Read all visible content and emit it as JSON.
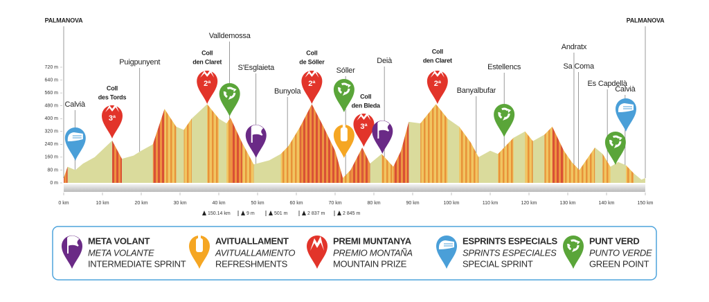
{
  "chart_data": {
    "type": "area",
    "color": "#dadb9c",
    "x": [
      0,
      1,
      3,
      5,
      8,
      12.5,
      15,
      18,
      20,
      23,
      26,
      29,
      31,
      33,
      37,
      40,
      42,
      43,
      46,
      49,
      53,
      56,
      58,
      61,
      64,
      67,
      70,
      72,
      74,
      77,
      79,
      80,
      82,
      85,
      87,
      89,
      92,
      96,
      99,
      102,
      105,
      107,
      110,
      112,
      116,
      119,
      121,
      124,
      126,
      129,
      131,
      133,
      135,
      137,
      139,
      141,
      143,
      145,
      147,
      149,
      150
    ],
    "values": [
      30,
      100,
      80,
      120,
      160,
      263,
      150,
      170,
      200,
      240,
      460,
      350,
      330,
      400,
      490,
      400,
      370,
      405,
      250,
      115,
      140,
      180,
      230,
      350,
      490,
      350,
      200,
      30,
      80,
      220,
      120,
      140,
      180,
      100,
      200,
      380,
      370,
      490,
      400,
      350,
      250,
      160,
      200,
      180,
      280,
      320,
      260,
      300,
      350,
      200,
      130,
      80,
      150,
      220,
      180,
      100,
      130,
      110,
      60,
      20,
      30
    ],
    "xlim": [
      0,
      150
    ],
    "ylim": [
      0,
      720
    ],
    "xticks": [
      {
        "value": 0,
        "label": "0 km"
      },
      {
        "value": 10,
        "label": "10 km"
      },
      {
        "value": 20,
        "label": "20 km"
      },
      {
        "value": 30,
        "label": "30 km"
      },
      {
        "value": 40,
        "label": "40 km"
      },
      {
        "value": 50,
        "label": "50 km"
      },
      {
        "value": 60,
        "label": "60 km"
      },
      {
        "value": 70,
        "label": "70 km"
      },
      {
        "value": 80,
        "label": "80 km"
      },
      {
        "value": 90,
        "label": "90 km"
      },
      {
        "value": 100,
        "label": "100 km"
      },
      {
        "value": 110,
        "label": "110 km"
      },
      {
        "value": 120,
        "label": "120 km"
      },
      {
        "value": 130,
        "label": "130 km"
      },
      {
        "value": 140,
        "label": "140 km"
      },
      {
        "value": 150,
        "label": "150 km"
      }
    ],
    "yticks": [
      {
        "value": 0,
        "label": "0 m"
      },
      {
        "value": 80,
        "label": "80 m"
      },
      {
        "value": 160,
        "label": "160 m"
      },
      {
        "value": 240,
        "label": "240 m"
      },
      {
        "value": 320,
        "label": "320 m"
      },
      {
        "value": 400,
        "label": "400 m"
      },
      {
        "value": 480,
        "label": "480 m"
      },
      {
        "value": 560,
        "label": "560 m"
      },
      {
        "value": 640,
        "label": "640 m"
      },
      {
        "value": 720,
        "label": "720 m"
      }
    ],
    "places": [
      {
        "lines": [
          "PALMANOVA"
        ],
        "x": 0
      },
      {
        "lines": [
          "Calvià"
        ],
        "x": 2.9
      },
      {
        "lines": [
          "Coll",
          "des Tords"
        ],
        "x": 12.5
      },
      {
        "lines": [
          "Puigpunyent"
        ],
        "x": 19.6
      },
      {
        "lines": [
          "Coll",
          "den Claret"
        ],
        "x": 37
      },
      {
        "lines": [
          "Valldemossa"
        ],
        "x": 42.8
      },
      {
        "lines": [
          "S'Esglaieta"
        ],
        "x": 49.6
      },
      {
        "lines": [
          "Bunyola"
        ],
        "x": 57.7
      },
      {
        "lines": [
          "Coll",
          "de Sóller"
        ],
        "x": 64
      },
      {
        "lines": [
          "Sóller"
        ],
        "x": 72.7
      },
      {
        "lines": [
          "Coll",
          "den Bleda"
        ],
        "x": 77.9
      },
      {
        "lines": [
          "Deià"
        ],
        "x": 82.7
      },
      {
        "lines": [
          "Coll",
          "den Claret"
        ],
        "x": 96.4
      },
      {
        "lines": [
          "Banyalbufar"
        ],
        "x": 106.4
      },
      {
        "lines": [
          "Estellencs"
        ],
        "x": 113.6
      },
      {
        "lines": [
          "Andratx"
        ],
        "x": 131.6
      },
      {
        "lines": [
          "Sa Coma"
        ],
        "x": 132.8
      },
      {
        "lines": [
          "Es Capdellà"
        ],
        "x": 140.2
      },
      {
        "lines": [
          "Calvià"
        ],
        "x": 144.8
      },
      {
        "lines": [
          "PALMANOVA"
        ],
        "x": 150
      }
    ],
    "pins": [
      {
        "x": 3,
        "color": "#4a9fd8"
      },
      {
        "x": 12.5,
        "color": "#e2342a",
        "label": "3ª"
      },
      {
        "x": 37,
        "color": "#e2342a",
        "label": "2ª"
      },
      {
        "x": 42.8,
        "color": "#5aa539"
      },
      {
        "x": 49.6,
        "color": "#6a2a86"
      },
      {
        "x": 64,
        "color": "#e2342a",
        "label": "2ª"
      },
      {
        "x": 72.3,
        "color": "#5aa539"
      },
      {
        "x": 72.3,
        "color": "#f5a623"
      },
      {
        "x": 77.4,
        "color": "#e2342a",
        "label": "3ª"
      },
      {
        "x": 82.2,
        "color": "#6a2a86"
      },
      {
        "x": 96.4,
        "color": "#e2342a",
        "label": "2ª"
      },
      {
        "x": 113.6,
        "color": "#5aa539"
      },
      {
        "x": 142.3,
        "color": "#5aa539"
      },
      {
        "x": 145,
        "color": "#4a9fd8"
      }
    ],
    "stats": [
      "150.14 km",
      "9 m",
      "501 m",
      "2 837 m",
      "2 845 m"
    ]
  },
  "legend": [
    {
      "title": "META VOLANT",
      "es": "META VOLANTE",
      "en": "INTERMEDIATE SPRINT",
      "color": "#6a2a86"
    },
    {
      "title": "AVITUALLAMENT",
      "es": "AVITUALLAMIENTO",
      "en": "REFRESHMENTS",
      "color": "#f5a623"
    },
    {
      "title": "PREMI MUNTANYA",
      "es": "PREMIO MONTAÑA",
      "en": "MOUNTAIN PRIZE",
      "color": "#e2342a"
    },
    {
      "title": "ESPRINTS ESPECIALS",
      "es": "SPRINTS ESPECIALES",
      "en": "SPECIAL SPRINT",
      "color": "#4a9fd8"
    },
    {
      "title": "PUNT VERD",
      "es": "PUNTO VERDE",
      "en": "GREEN POINT",
      "color": "#5aa539"
    }
  ]
}
